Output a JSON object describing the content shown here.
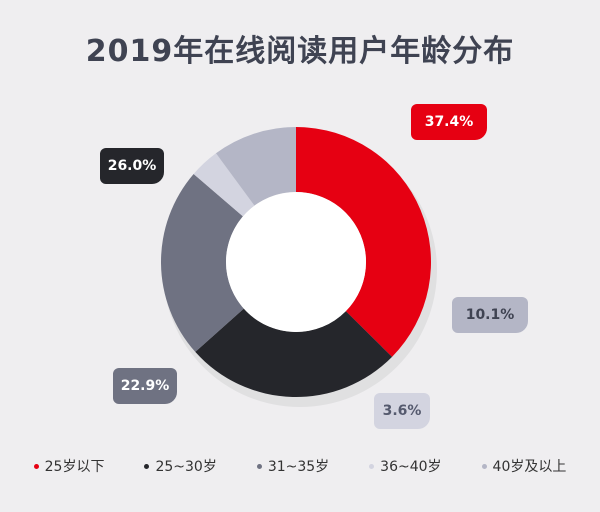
{
  "chart_data": {
    "type": "pie",
    "title": "2019年在线阅读用户年龄分布",
    "categories": [
      "25岁以下",
      "25~30岁",
      "31~35岁",
      "36~40岁",
      "40岁及以上"
    ],
    "values": [
      37.4,
      26.0,
      22.9,
      3.6,
      10.1
    ],
    "value_labels": [
      "37.4%",
      "26.0%",
      "22.9%",
      "3.6%",
      "10.1%"
    ],
    "colors": [
      "#e60012",
      "#25262b",
      "#6f7282",
      "#d3d4e0",
      "#b4b6c6"
    ],
    "label_text_colors": [
      "#ffffff",
      "#ffffff",
      "#ffffff",
      "#555a6e",
      "#3f4352"
    ],
    "donut": true,
    "legend_position": "bottom"
  }
}
